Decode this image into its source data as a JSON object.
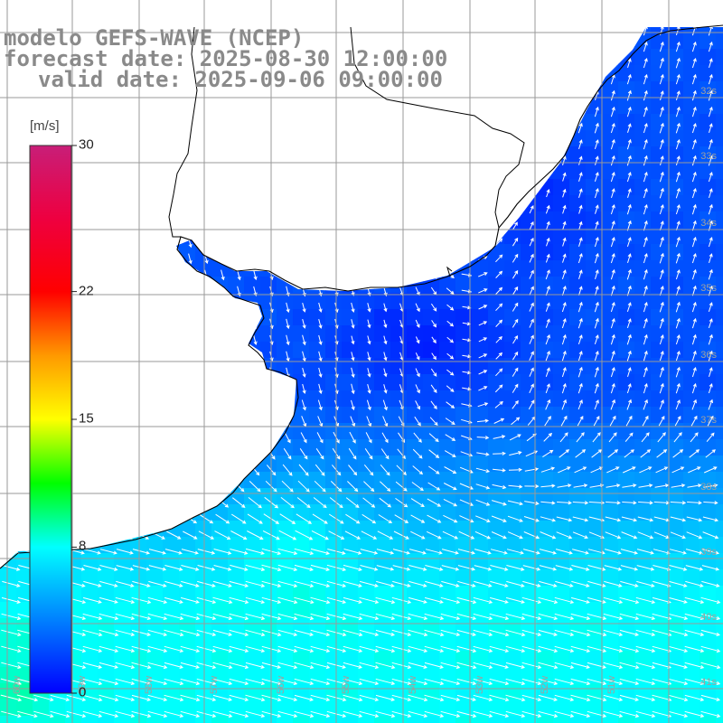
{
  "titles": {
    "model": "modelo GEFS-WAVE (NCEP)",
    "forecast": "forecast date: 2025-08-30 12:00:00",
    "valid": "valid date: 2025-09-06 09:00:00"
  },
  "colorbar": {
    "unit": "[m/s]",
    "min": 0,
    "max": 30,
    "ticks": [
      "30",
      "22",
      "15",
      "8",
      "0"
    ],
    "tick_values": [
      30,
      22,
      15,
      8,
      0
    ],
    "color_stops": [
      {
        "value": 0,
        "color": "#0000ff"
      },
      {
        "value": 4,
        "color": "#0080ff"
      },
      {
        "value": 8,
        "color": "#00ffff"
      },
      {
        "value": 11.5,
        "color": "#00ff00"
      },
      {
        "value": 15,
        "color": "#ffff00"
      },
      {
        "value": 18.5,
        "color": "#ff9900"
      },
      {
        "value": 22,
        "color": "#ff0000"
      },
      {
        "value": 26,
        "color": "#ee0040"
      },
      {
        "value": 30,
        "color": "#c81e78"
      }
    ]
  },
  "map": {
    "background": "#ffffff",
    "gridline_color": "#9a9a9a",
    "coastline_color": "#000000",
    "arrow_color": "#ffffff",
    "latitude_labels": [
      "32s",
      "33s",
      "34s",
      "35s",
      "36s",
      "37s",
      "38s",
      "39s",
      "40s",
      "41s"
    ],
    "longitude_labels": [
      "60w",
      "59w",
      "58w",
      "57w",
      "56w",
      "55w",
      "54w",
      "53w",
      "52w",
      "51w"
    ]
  }
}
